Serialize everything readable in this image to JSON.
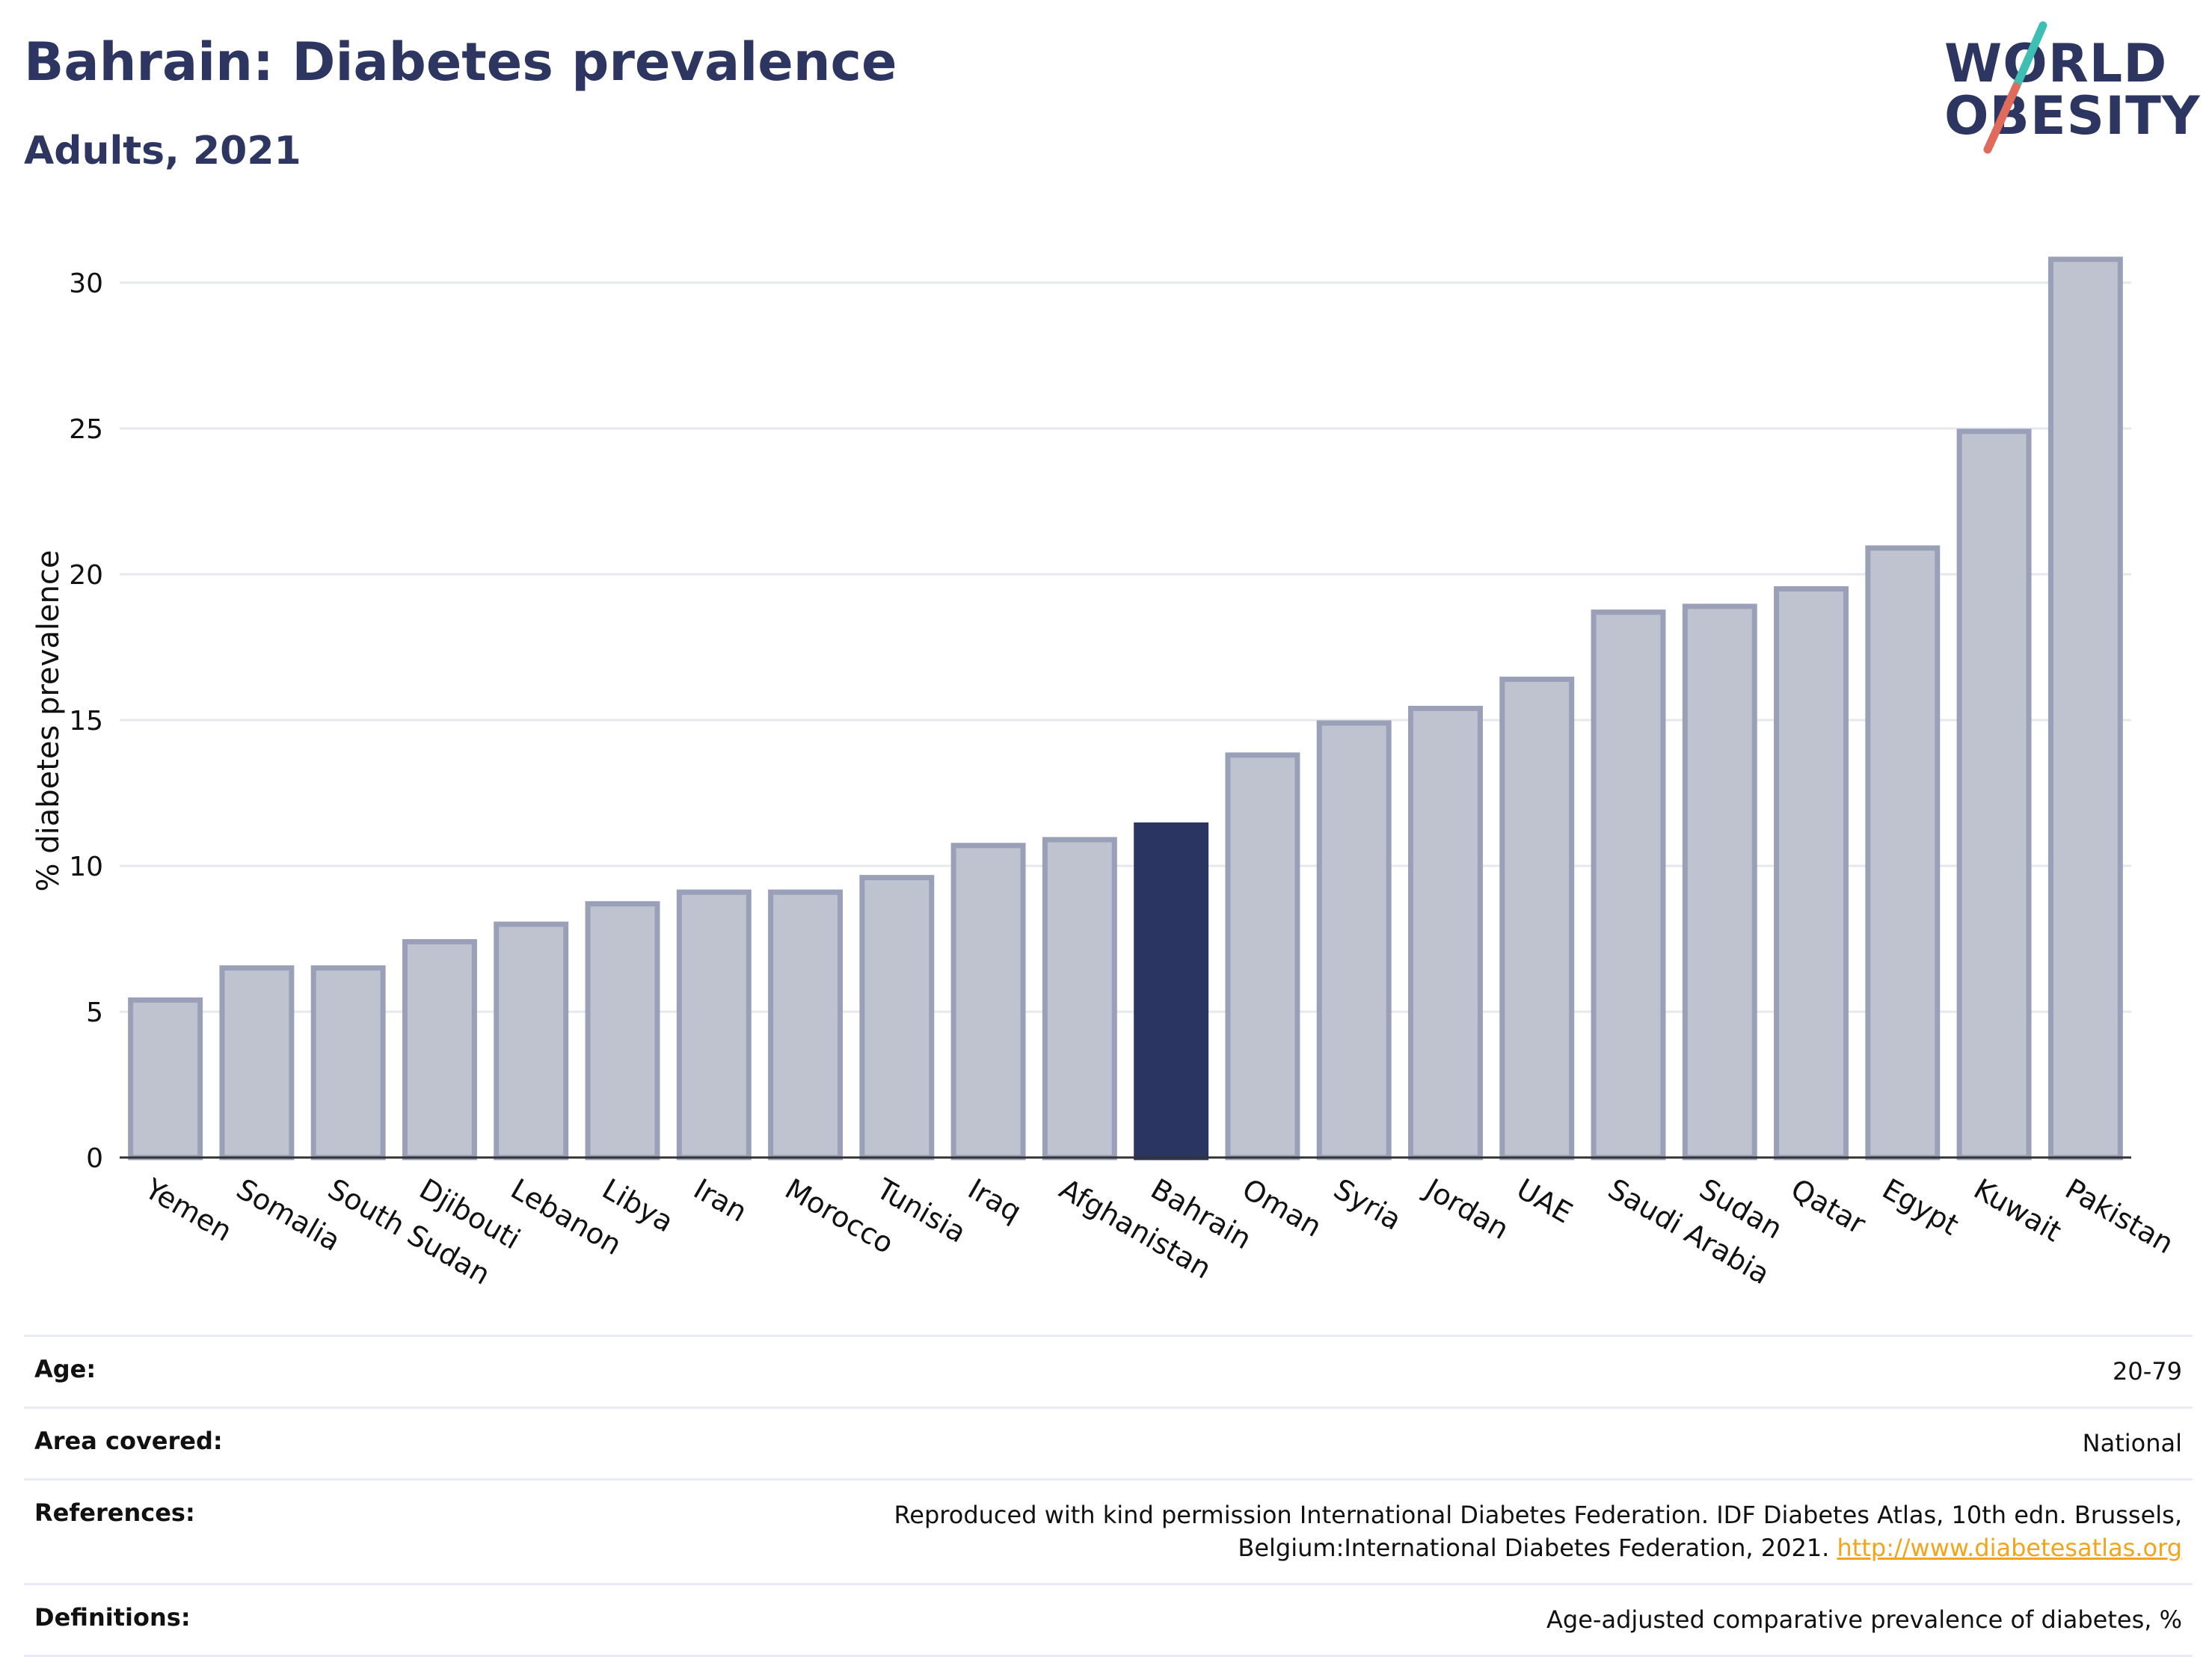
{
  "header": {
    "title": "Bahrain: Diabetes prevalence",
    "subtitle": "Adults, 2021"
  },
  "logo": {
    "line1": "WORLD",
    "line2": "OBESITY",
    "accent_teal": "#3fbfb3",
    "accent_red": "#e06a5c"
  },
  "colors": {
    "bar": "#bfc3d0",
    "bar_border": "#9aa0b7",
    "highlight": "#2b3561",
    "grid": "#e6e8ee",
    "axis": "#333333"
  },
  "chart_data": {
    "type": "bar",
    "title": "",
    "xlabel": "",
    "ylabel": "% diabetes prevalence",
    "ylim": [
      0,
      32
    ],
    "yticks": [
      0,
      5,
      10,
      15,
      20,
      25,
      30
    ],
    "grid": true,
    "highlight": "Bahrain",
    "categories": [
      "Yemen",
      "Somalia",
      "South Sudan",
      "Djibouti",
      "Lebanon",
      "Libya",
      "Iran",
      "Morocco",
      "Tunisia",
      "Iraq",
      "Afghanistan",
      "Bahrain",
      "Oman",
      "Syria",
      "Jordan",
      "UAE",
      "Saudi Arabia",
      "Sudan",
      "Qatar",
      "Egypt",
      "Kuwait",
      "Pakistan"
    ],
    "values": [
      5.4,
      6.5,
      6.5,
      7.4,
      8.0,
      8.7,
      9.1,
      9.1,
      9.6,
      10.7,
      10.9,
      11.4,
      13.8,
      14.9,
      15.4,
      16.4,
      18.7,
      18.9,
      19.5,
      20.9,
      24.9,
      30.8
    ]
  },
  "info": {
    "age_label": "Age:",
    "age_value": "20-79",
    "area_label": "Area covered:",
    "area_value": "National",
    "references_label": "References:",
    "references_value": "Reproduced with kind permission International Diabetes Federation.  IDF Diabetes Atlas, 10th edn. Brussels, Belgium:International Diabetes Federation, 2021.",
    "references_link": "http://www.diabetesatlas.org",
    "definitions_label": "Definitions:",
    "definitions_value": "Age-adjusted comparative prevalence of diabetes, %"
  }
}
